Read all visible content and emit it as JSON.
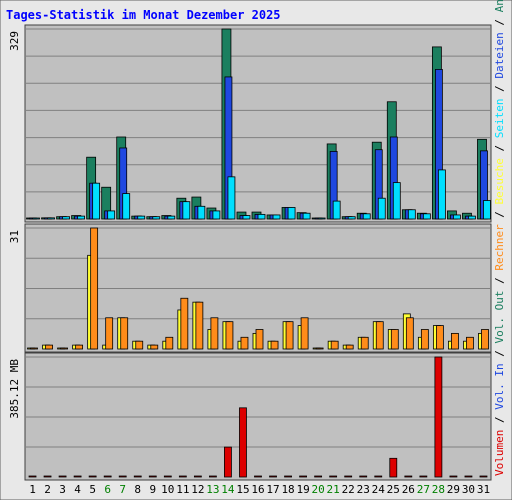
{
  "title": "Tages-Statistik im Monat Dezember 2025",
  "colors": {
    "background": "#E8E8E8",
    "panel": "#C0C0C0",
    "title": "#0000FF",
    "grid": "#808080",
    "anfragen": "#1B7F5F",
    "dateien": "#1F48E0",
    "seiten": "#00DFFF",
    "besuche": "#FFFF33",
    "rechner": "#FF8C1A",
    "volumen": "#DD0000",
    "weekend_label": "#008000",
    "day_label": "#000000"
  },
  "chart_data": [
    {
      "type": "bar",
      "panel": "top",
      "ylabel_max": "329",
      "ylim": [
        0,
        329
      ],
      "categories": [
        "1",
        "2",
        "3",
        "4",
        "5",
        "6",
        "7",
        "8",
        "9",
        "10",
        "11",
        "12",
        "13",
        "14",
        "15",
        "16",
        "17",
        "18",
        "19",
        "20",
        "21",
        "22",
        "23",
        "24",
        "25",
        "26",
        "27",
        "28",
        "29",
        "30",
        "31"
      ],
      "weekend_days": [
        "6",
        "7",
        "13",
        "14",
        "20",
        "21",
        "27",
        "28"
      ],
      "series": [
        {
          "name": "Anfragen",
          "values": [
            0,
            2,
            4,
            6,
            107,
            55,
            142,
            5,
            4,
            6,
            36,
            38,
            19,
            329,
            12,
            12,
            7,
            20,
            11,
            0,
            130,
            4,
            10,
            133,
            203,
            16,
            10,
            298,
            14,
            10,
            138
          ]
        },
        {
          "name": "Dateien",
          "values": [
            0,
            2,
            4,
            5,
            62,
            14,
            123,
            5,
            4,
            5,
            30,
            22,
            14,
            246,
            6,
            8,
            7,
            20,
            10,
            0,
            117,
            4,
            9,
            120,
            142,
            16,
            9,
            259,
            7,
            5,
            118
          ]
        },
        {
          "name": "Seiten",
          "values": [
            0,
            2,
            4,
            5,
            62,
            14,
            44,
            5,
            4,
            5,
            30,
            22,
            14,
            73,
            6,
            8,
            7,
            20,
            10,
            0,
            31,
            4,
            9,
            36,
            63,
            16,
            9,
            85,
            7,
            5,
            32
          ]
        }
      ],
      "side_labels": [
        "Anfragen",
        "Dateien",
        "Seiten"
      ]
    },
    {
      "type": "bar",
      "panel": "middle",
      "ylabel_max": "31",
      "ylim": [
        0,
        31
      ],
      "categories": [
        "1",
        "2",
        "3",
        "4",
        "5",
        "6",
        "7",
        "8",
        "9",
        "10",
        "11",
        "12",
        "13",
        "14",
        "15",
        "16",
        "17",
        "18",
        "19",
        "20",
        "21",
        "22",
        "23",
        "24",
        "25",
        "26",
        "27",
        "28",
        "29",
        "30",
        "31"
      ],
      "series": [
        {
          "name": "Besuche",
          "values": [
            0,
            1,
            0,
            1,
            24,
            1,
            8,
            2,
            1,
            2,
            10,
            12,
            5,
            7,
            2,
            4,
            2,
            7,
            6,
            0,
            2,
            1,
            3,
            7,
            5,
            9,
            3,
            6,
            2,
            2,
            4
          ]
        },
        {
          "name": "Rechner",
          "values": [
            0,
            1,
            0,
            1,
            31,
            8,
            8,
            2,
            1,
            3,
            13,
            12,
            8,
            7,
            3,
            5,
            2,
            7,
            8,
            0,
            2,
            1,
            3,
            7,
            5,
            8,
            5,
            6,
            4,
            3,
            5
          ]
        }
      ],
      "side_labels": [
        "Besuche",
        "Rechner",
        "Vol. Out"
      ]
    },
    {
      "type": "bar",
      "panel": "bottom",
      "ylabel_max": "385.12 MB",
      "ylim": [
        0,
        385.12
      ],
      "categories": [
        "1",
        "2",
        "3",
        "4",
        "5",
        "6",
        "7",
        "8",
        "9",
        "10",
        "11",
        "12",
        "13",
        "14",
        "15",
        "16",
        "17",
        "18",
        "19",
        "20",
        "21",
        "22",
        "23",
        "24",
        "25",
        "26",
        "27",
        "28",
        "29",
        "30",
        "31"
      ],
      "series": [
        {
          "name": "Volumen",
          "values": [
            0,
            2,
            0,
            2,
            2,
            2,
            2,
            2,
            2,
            0,
            2,
            2,
            2,
            96,
            222,
            2,
            0,
            2,
            2,
            0,
            2,
            0,
            2,
            2,
            60,
            2,
            2,
            385.12,
            2,
            2,
            2
          ]
        }
      ],
      "side_labels": [
        "Volumen",
        "Vol. In"
      ]
    }
  ]
}
